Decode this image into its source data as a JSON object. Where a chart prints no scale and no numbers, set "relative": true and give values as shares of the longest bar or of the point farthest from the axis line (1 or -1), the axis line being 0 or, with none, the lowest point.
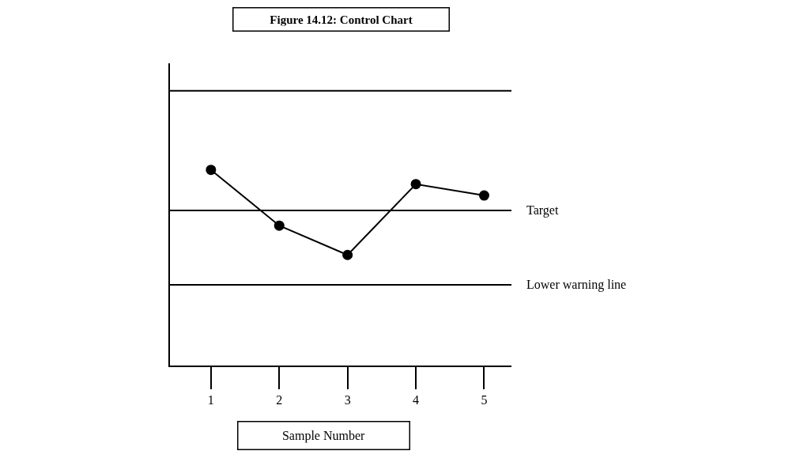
{
  "chart_data": {
    "type": "line",
    "title": "Figure 14.12: Control Chart",
    "xlabel": "Sample Number",
    "categories": [
      "1",
      "2",
      "3",
      "4",
      "5"
    ],
    "series": [
      {
        "color": "#000000",
        "values": [
          1.0,
          0.715,
          0.565,
          0.927,
          0.869
        ]
      }
    ],
    "relative": true,
    "marker": "circle",
    "line_style": "solid",
    "ref_lines": [
      {
        "axis": "y",
        "value": 1.404,
        "label": null,
        "color": "#000000"
      },
      {
        "axis": "y",
        "value": 0.792,
        "label": "Target",
        "color": "#000000"
      },
      {
        "axis": "y",
        "value": 0.412,
        "label": "Lower warning line",
        "color": "#000000"
      }
    ]
  }
}
